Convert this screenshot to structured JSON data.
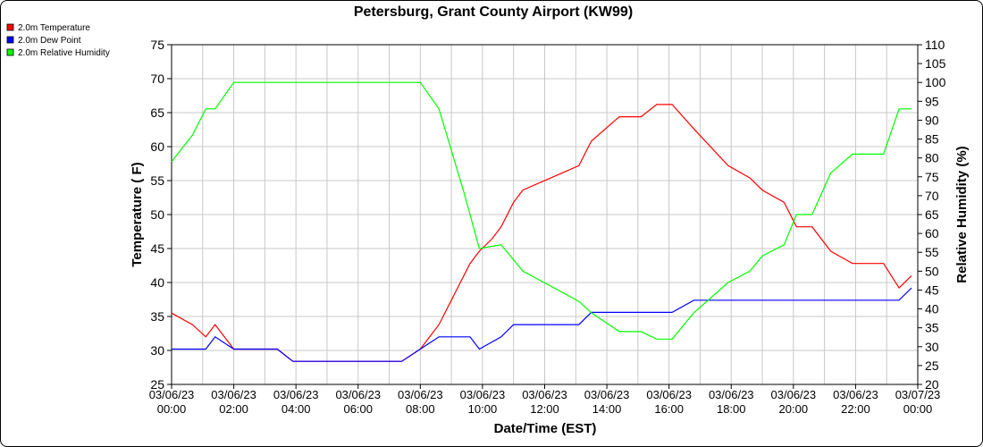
{
  "chart_data": {
    "type": "line",
    "title": "Petersburg, Grant County Airport (KW99)",
    "xlabel": "Date/Time (EST)",
    "ylabel": "Temperature ( F)",
    "y2label": "Relative Humidity (%)",
    "ylim": [
      25,
      75
    ],
    "y2lim": [
      20,
      110
    ],
    "y_ticks": [
      25,
      30,
      35,
      40,
      45,
      50,
      55,
      60,
      65,
      70,
      75
    ],
    "y2_ticks": [
      20,
      25,
      30,
      35,
      40,
      45,
      50,
      55,
      60,
      65,
      70,
      75,
      80,
      85,
      90,
      95,
      100,
      105,
      110
    ],
    "x_ticks": [
      {
        "hour": 0,
        "date": "03/06/23",
        "time": "00:00"
      },
      {
        "hour": 2,
        "date": "03/06/23",
        "time": "02:00"
      },
      {
        "hour": 4,
        "date": "03/06/23",
        "time": "04:00"
      },
      {
        "hour": 6,
        "date": "03/06/23",
        "time": "06:00"
      },
      {
        "hour": 8,
        "date": "03/06/23",
        "time": "08:00"
      },
      {
        "hour": 10,
        "date": "03/06/23",
        "time": "10:00"
      },
      {
        "hour": 12,
        "date": "03/06/23",
        "time": "12:00"
      },
      {
        "hour": 14,
        "date": "03/06/23",
        "time": "14:00"
      },
      {
        "hour": 16,
        "date": "03/06/23",
        "time": "16:00"
      },
      {
        "hour": 18,
        "date": "03/06/23",
        "time": "18:00"
      },
      {
        "hour": 20,
        "date": "03/06/23",
        "time": "20:00"
      },
      {
        "hour": 22,
        "date": "03/06/23",
        "time": "22:00"
      },
      {
        "hour": 24,
        "date": "03/07/23",
        "time": "00:00"
      }
    ],
    "xlim": [
      0,
      24
    ],
    "grid": true,
    "legend_position": "top-left",
    "series": [
      {
        "name": "2.0m Temperature",
        "color": "#ff0000",
        "axis": "left",
        "x": [
          0,
          0.67,
          1.1,
          1.4,
          2,
          2.4,
          3.4,
          3.9,
          6.6,
          7.4,
          8,
          8.6,
          9.0,
          9.4,
          9.6,
          9.9,
          10.3,
          10.6,
          11.0,
          11.3,
          13.1,
          13.5,
          14.4,
          15.1,
          15.6,
          16.1,
          16.8,
          17.9,
          18.6,
          19.0,
          19.7,
          20.1,
          20.6,
          21.2,
          21.9,
          22.9,
          23.4,
          23.8
        ],
        "y": [
          35.5,
          33.8,
          32,
          33.8,
          30.2,
          30.2,
          30.2,
          28.4,
          28.4,
          28.4,
          30.2,
          33.8,
          37.4,
          41,
          42.8,
          44.6,
          46.4,
          48.2,
          51.8,
          53.6,
          57.2,
          60.8,
          64.4,
          64.4,
          66.2,
          66.2,
          62.6,
          57.2,
          55.4,
          53.6,
          51.8,
          48.2,
          48.2,
          44.6,
          42.8,
          42.8,
          39.2,
          41
        ]
      },
      {
        "name": "2.0m Dew Point",
        "color": "#0000ff",
        "axis": "left",
        "x": [
          0,
          1.1,
          1.4,
          2,
          2.4,
          3.4,
          3.9,
          6.6,
          7.4,
          8,
          8.6,
          9.6,
          9.9,
          10.6,
          11.0,
          11.3,
          13.1,
          13.5,
          14.4,
          15.1,
          15.6,
          16.1,
          16.8,
          17.9,
          18.6,
          19.0,
          19.7,
          20.1,
          20.6,
          21.2,
          21.9,
          22.9,
          23.4,
          23.8
        ],
        "y": [
          30.2,
          30.2,
          32,
          30.2,
          30.2,
          30.2,
          28.4,
          28.4,
          28.4,
          30.2,
          32,
          32,
          30.2,
          32,
          33.8,
          33.8,
          33.8,
          35.6,
          35.6,
          35.6,
          35.6,
          35.6,
          37.4,
          37.4,
          37.4,
          37.4,
          37.4,
          37.4,
          37.4,
          37.4,
          37.4,
          37.4,
          37.4,
          39.2
        ]
      },
      {
        "name": "2.0m Relative Humidity",
        "color": "#00ff00",
        "axis": "right",
        "x": [
          0,
          0.67,
          1.1,
          1.4,
          2,
          2.4,
          3.4,
          3.9,
          6.6,
          7.4,
          8,
          8.6,
          9.0,
          9.4,
          9.6,
          9.9,
          10.6,
          11.3,
          13.1,
          13.5,
          14.4,
          15.1,
          15.6,
          16.1,
          16.8,
          17.9,
          18.6,
          19.0,
          19.7,
          20.1,
          20.6,
          21.2,
          21.9,
          22.9,
          23.4,
          23.8
        ],
        "y": [
          79,
          86,
          93,
          93,
          100,
          100,
          100,
          100,
          100,
          100,
          100,
          93,
          82,
          71,
          65,
          56,
          57,
          50,
          42,
          39,
          34,
          34,
          32,
          32,
          39,
          47,
          50,
          54,
          57,
          65,
          65,
          76,
          81,
          81,
          93,
          93
        ]
      }
    ]
  }
}
